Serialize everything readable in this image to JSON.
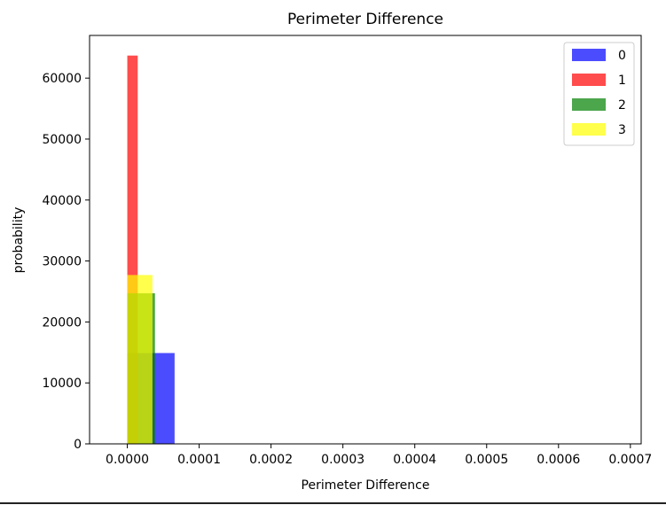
{
  "chart_data": {
    "type": "bar",
    "title": "Perimeter Difference",
    "xlabel": "Perimeter Difference",
    "ylabel": "probability",
    "xlim": [
      -5.25e-05,
      0.000715
    ],
    "ylim": [
      0,
      67000
    ],
    "xticks": [
      {
        "value": 0.0,
        "label": "0.0000"
      },
      {
        "value": 0.0001,
        "label": "0.0001"
      },
      {
        "value": 0.0002,
        "label": "0.0002"
      },
      {
        "value": 0.0003,
        "label": "0.0003"
      },
      {
        "value": 0.0004,
        "label": "0.0004"
      },
      {
        "value": 0.0005,
        "label": "0.0005"
      },
      {
        "value": 0.0006,
        "label": "0.0006"
      },
      {
        "value": 0.0007,
        "label": "0.0007"
      }
    ],
    "yticks": [
      {
        "value": 0,
        "label": "0"
      },
      {
        "value": 10000,
        "label": "10000"
      },
      {
        "value": 20000,
        "label": "20000"
      },
      {
        "value": 30000,
        "label": "30000"
      },
      {
        "value": 40000,
        "label": "40000"
      },
      {
        "value": 50000,
        "label": "50000"
      },
      {
        "value": 60000,
        "label": "60000"
      }
    ],
    "legend_position": "top-right",
    "grid": false,
    "series": [
      {
        "name": "0",
        "color": "#0000ff",
        "bins": [
          {
            "x0": 0.0,
            "x1": 6.58e-05,
            "height": 14900
          }
        ]
      },
      {
        "name": "1",
        "color": "#ff0000",
        "bins": [
          {
            "x0": 0.0,
            "x1": 1.45e-05,
            "height": 63700
          }
        ]
      },
      {
        "name": "2",
        "color": "#008000",
        "bins": [
          {
            "x0": 0.0,
            "x1": 3.85e-05,
            "height": 24700
          }
        ]
      },
      {
        "name": "3",
        "color": "#ffff00",
        "bins": [
          {
            "x0": 0.0,
            "x1": 3.5e-05,
            "height": 27700
          }
        ]
      }
    ]
  }
}
